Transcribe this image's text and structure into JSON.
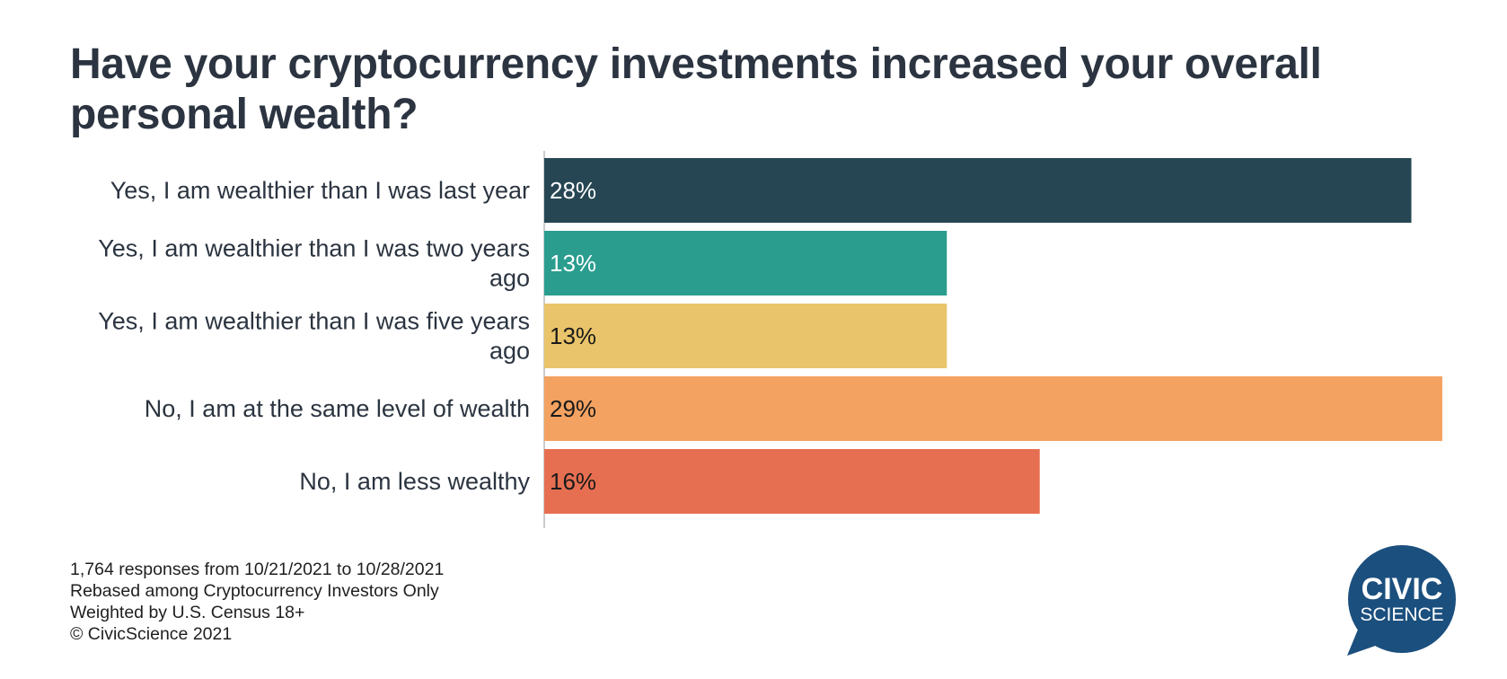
{
  "title": "Have your cryptocurrency investments increased your overall personal wealth?",
  "chart_data": {
    "type": "bar",
    "orientation": "horizontal",
    "categories": [
      "Yes, I am wealthier than I was last year",
      "Yes, I am wealthier than I was two years ago",
      "Yes, I am wealthier than I was five years ago",
      "No, I am at the same level of wealth",
      "No, I am less wealthy"
    ],
    "values": [
      28,
      13,
      13,
      29,
      16
    ],
    "value_labels": [
      "28%",
      "13%",
      "13%",
      "29%",
      "16%"
    ],
    "colors": [
      "#264653",
      "#2a9d8f",
      "#e9c46a",
      "#f4a261",
      "#e76f51"
    ],
    "label_colors": [
      "#ffffff",
      "#ffffff",
      "#1a1a1a",
      "#1a1a1a",
      "#1a1a1a"
    ],
    "xlim": [
      0,
      29
    ],
    "title": "Have your cryptocurrency investments increased your overall personal wealth?",
    "xlabel": "",
    "ylabel": "",
    "grid": false
  },
  "footer": {
    "line1": "1,764 responses from 10/21/2021 to 10/28/2021",
    "line2": "Rebased among Cryptocurrency Investors Only",
    "line3": "Weighted by U.S. Census 18+",
    "line4": "© CivicScience 2021"
  },
  "logo": {
    "line1": "CIVIC",
    "line2": "SCIENCE",
    "color": "#1b4f7e"
  }
}
